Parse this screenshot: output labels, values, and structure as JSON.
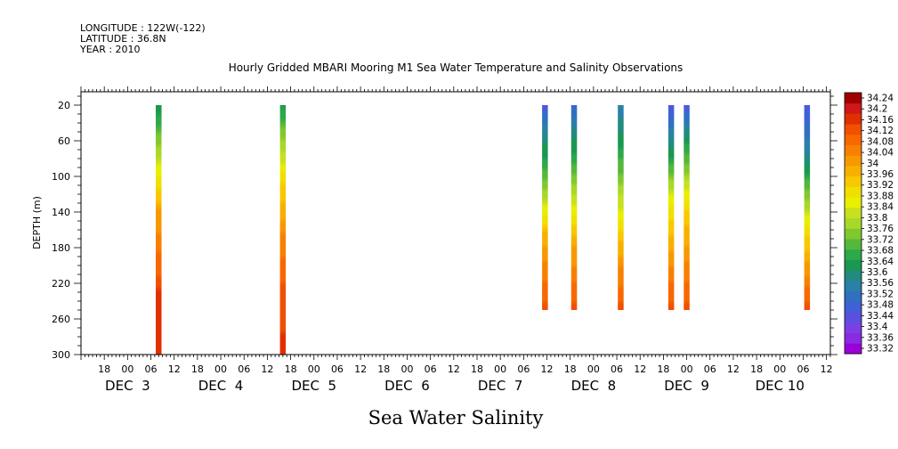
{
  "header": {
    "longitude": "LONGITUDE : 122W(-122)",
    "latitude": "LATITUDE : 36.8N",
    "year": "YEAR : 2010"
  },
  "chart_data": {
    "type": "heatmap",
    "title": "Hourly Gridded MBARI Mooring M1 Sea Water Temperature and Salinity Observations",
    "xlabel": "Sea Water Salinity",
    "ylabel": "DEPTH (m)",
    "x_range_hours": [
      "2010-12-02T12:00",
      "2010-12-10T13:00"
    ],
    "ylim": [
      300,
      5
    ],
    "y_ticks": [
      20,
      60,
      100,
      140,
      180,
      220,
      260,
      300
    ],
    "x_hour_ticks": [
      {
        "label": "18",
        "t": "2010-12-02T18:00"
      },
      {
        "label": "00",
        "t": "2010-12-03T00:00"
      },
      {
        "label": "06",
        "t": "2010-12-03T06:00"
      },
      {
        "label": "12",
        "t": "2010-12-03T12:00"
      },
      {
        "label": "18",
        "t": "2010-12-03T18:00"
      },
      {
        "label": "00",
        "t": "2010-12-04T00:00"
      },
      {
        "label": "06",
        "t": "2010-12-04T06:00"
      },
      {
        "label": "12",
        "t": "2010-12-04T12:00"
      },
      {
        "label": "18",
        "t": "2010-12-04T18:00"
      },
      {
        "label": "00",
        "t": "2010-12-05T00:00"
      },
      {
        "label": "06",
        "t": "2010-12-05T06:00"
      },
      {
        "label": "12",
        "t": "2010-12-05T12:00"
      },
      {
        "label": "18",
        "t": "2010-12-05T18:00"
      },
      {
        "label": "00",
        "t": "2010-12-06T00:00"
      },
      {
        "label": "06",
        "t": "2010-12-06T06:00"
      },
      {
        "label": "12",
        "t": "2010-12-06T12:00"
      },
      {
        "label": "18",
        "t": "2010-12-06T18:00"
      },
      {
        "label": "00",
        "t": "2010-12-07T00:00"
      },
      {
        "label": "06",
        "t": "2010-12-07T06:00"
      },
      {
        "label": "12",
        "t": "2010-12-07T12:00"
      },
      {
        "label": "18",
        "t": "2010-12-07T18:00"
      },
      {
        "label": "00",
        "t": "2010-12-08T00:00"
      },
      {
        "label": "06",
        "t": "2010-12-08T06:00"
      },
      {
        "label": "12",
        "t": "2010-12-08T12:00"
      },
      {
        "label": "18",
        "t": "2010-12-08T18:00"
      },
      {
        "label": "00",
        "t": "2010-12-09T00:00"
      },
      {
        "label": "06",
        "t": "2010-12-09T06:00"
      },
      {
        "label": "12",
        "t": "2010-12-09T12:00"
      },
      {
        "label": "18",
        "t": "2010-12-09T18:00"
      },
      {
        "label": "00",
        "t": "2010-12-10T00:00"
      },
      {
        "label": "06",
        "t": "2010-12-10T06:00"
      },
      {
        "label": "12",
        "t": "2010-12-10T12:00"
      }
    ],
    "x_date_labels": [
      {
        "label": "DEC  3",
        "t": "2010-12-03T00:00"
      },
      {
        "label": "DEC  4",
        "t": "2010-12-04T00:00"
      },
      {
        "label": "DEC  5",
        "t": "2010-12-05T00:00"
      },
      {
        "label": "DEC  6",
        "t": "2010-12-06T00:00"
      },
      {
        "label": "DEC  7",
        "t": "2010-12-07T00:00"
      },
      {
        "label": "DEC  8",
        "t": "2010-12-08T00:00"
      },
      {
        "label": "DEC  9",
        "t": "2010-12-09T00:00"
      },
      {
        "label": "DEC 10",
        "t": "2010-12-10T00:00"
      }
    ],
    "colorbar": {
      "min": 33.32,
      "max": 34.24,
      "step": 0.04,
      "labels": [
        "34.24",
        "34.2",
        "34.16",
        "34.12",
        "34.08",
        "34.04",
        "34",
        "33.96",
        "33.92",
        "33.88",
        "33.84",
        "33.8",
        "33.76",
        "33.72",
        "33.68",
        "33.64",
        "33.6",
        "33.56",
        "33.52",
        "33.48",
        "33.44",
        "33.4",
        "33.36",
        "33.32"
      ],
      "colors": [
        "#9b00d8",
        "#8a2be2",
        "#7b3fe6",
        "#5a50e0",
        "#4060d8",
        "#3070c0",
        "#2a80a8",
        "#228b80",
        "#1a9850",
        "#2da84a",
        "#55b83a",
        "#80c830",
        "#a8d828",
        "#c8e020",
        "#e8f000",
        "#f0e000",
        "#f8c800",
        "#f8b000",
        "#f89800",
        "#f88000",
        "#f86800",
        "#f05000",
        "#e03000",
        "#d01818",
        "#a00000"
      ]
    },
    "profiles": [
      {
        "t": "2010-12-03T08:00",
        "depth_range": [
          20,
          300
        ],
        "stops": [
          [
            20,
            33.64
          ],
          [
            60,
            33.78
          ],
          [
            110,
            33.95
          ],
          [
            140,
            34.05
          ],
          [
            200,
            34.14
          ],
          [
            240,
            34.22
          ],
          [
            300,
            34.2
          ]
        ]
      },
      {
        "t": "2010-12-04T16:00",
        "depth_range": [
          20,
          300
        ],
        "stops": [
          [
            20,
            33.66
          ],
          [
            70,
            33.84
          ],
          [
            110,
            33.96
          ],
          [
            160,
            34.07
          ],
          [
            220,
            34.16
          ],
          [
            300,
            34.22
          ]
        ]
      },
      {
        "t": "2010-12-07T11:30",
        "depth_range": [
          20,
          250
        ],
        "stops": [
          [
            20,
            33.48
          ],
          [
            60,
            33.62
          ],
          [
            120,
            33.82
          ],
          [
            170,
            34.03
          ],
          [
            250,
            34.18
          ]
        ]
      },
      {
        "t": "2010-12-07T19:00",
        "depth_range": [
          20,
          250
        ],
        "stops": [
          [
            20,
            33.5
          ],
          [
            60,
            33.64
          ],
          [
            120,
            33.84
          ],
          [
            180,
            34.04
          ],
          [
            250,
            34.18
          ]
        ]
      },
      {
        "t": "2010-12-08T07:00",
        "depth_range": [
          20,
          250
        ],
        "stops": [
          [
            20,
            33.56
          ],
          [
            60,
            33.66
          ],
          [
            130,
            33.86
          ],
          [
            190,
            34.05
          ],
          [
            250,
            34.18
          ]
        ]
      },
      {
        "t": "2010-12-08T20:00",
        "depth_range": [
          20,
          250
        ],
        "stops": [
          [
            20,
            33.48
          ],
          [
            70,
            33.64
          ],
          [
            130,
            33.92
          ],
          [
            190,
            34.06
          ],
          [
            250,
            34.18
          ]
        ]
      },
      {
        "t": "2010-12-09T00:00",
        "depth_range": [
          20,
          250
        ],
        "stops": [
          [
            20,
            33.48
          ],
          [
            60,
            33.66
          ],
          [
            130,
            33.94
          ],
          [
            190,
            34.07
          ],
          [
            250,
            34.17
          ]
        ]
      },
      {
        "t": "2010-12-10T07:00",
        "depth_range": [
          20,
          250
        ],
        "stops": [
          [
            20,
            33.48
          ],
          [
            70,
            33.58
          ],
          [
            140,
            33.86
          ],
          [
            190,
            34.03
          ],
          [
            250,
            34.18
          ]
        ]
      }
    ]
  }
}
